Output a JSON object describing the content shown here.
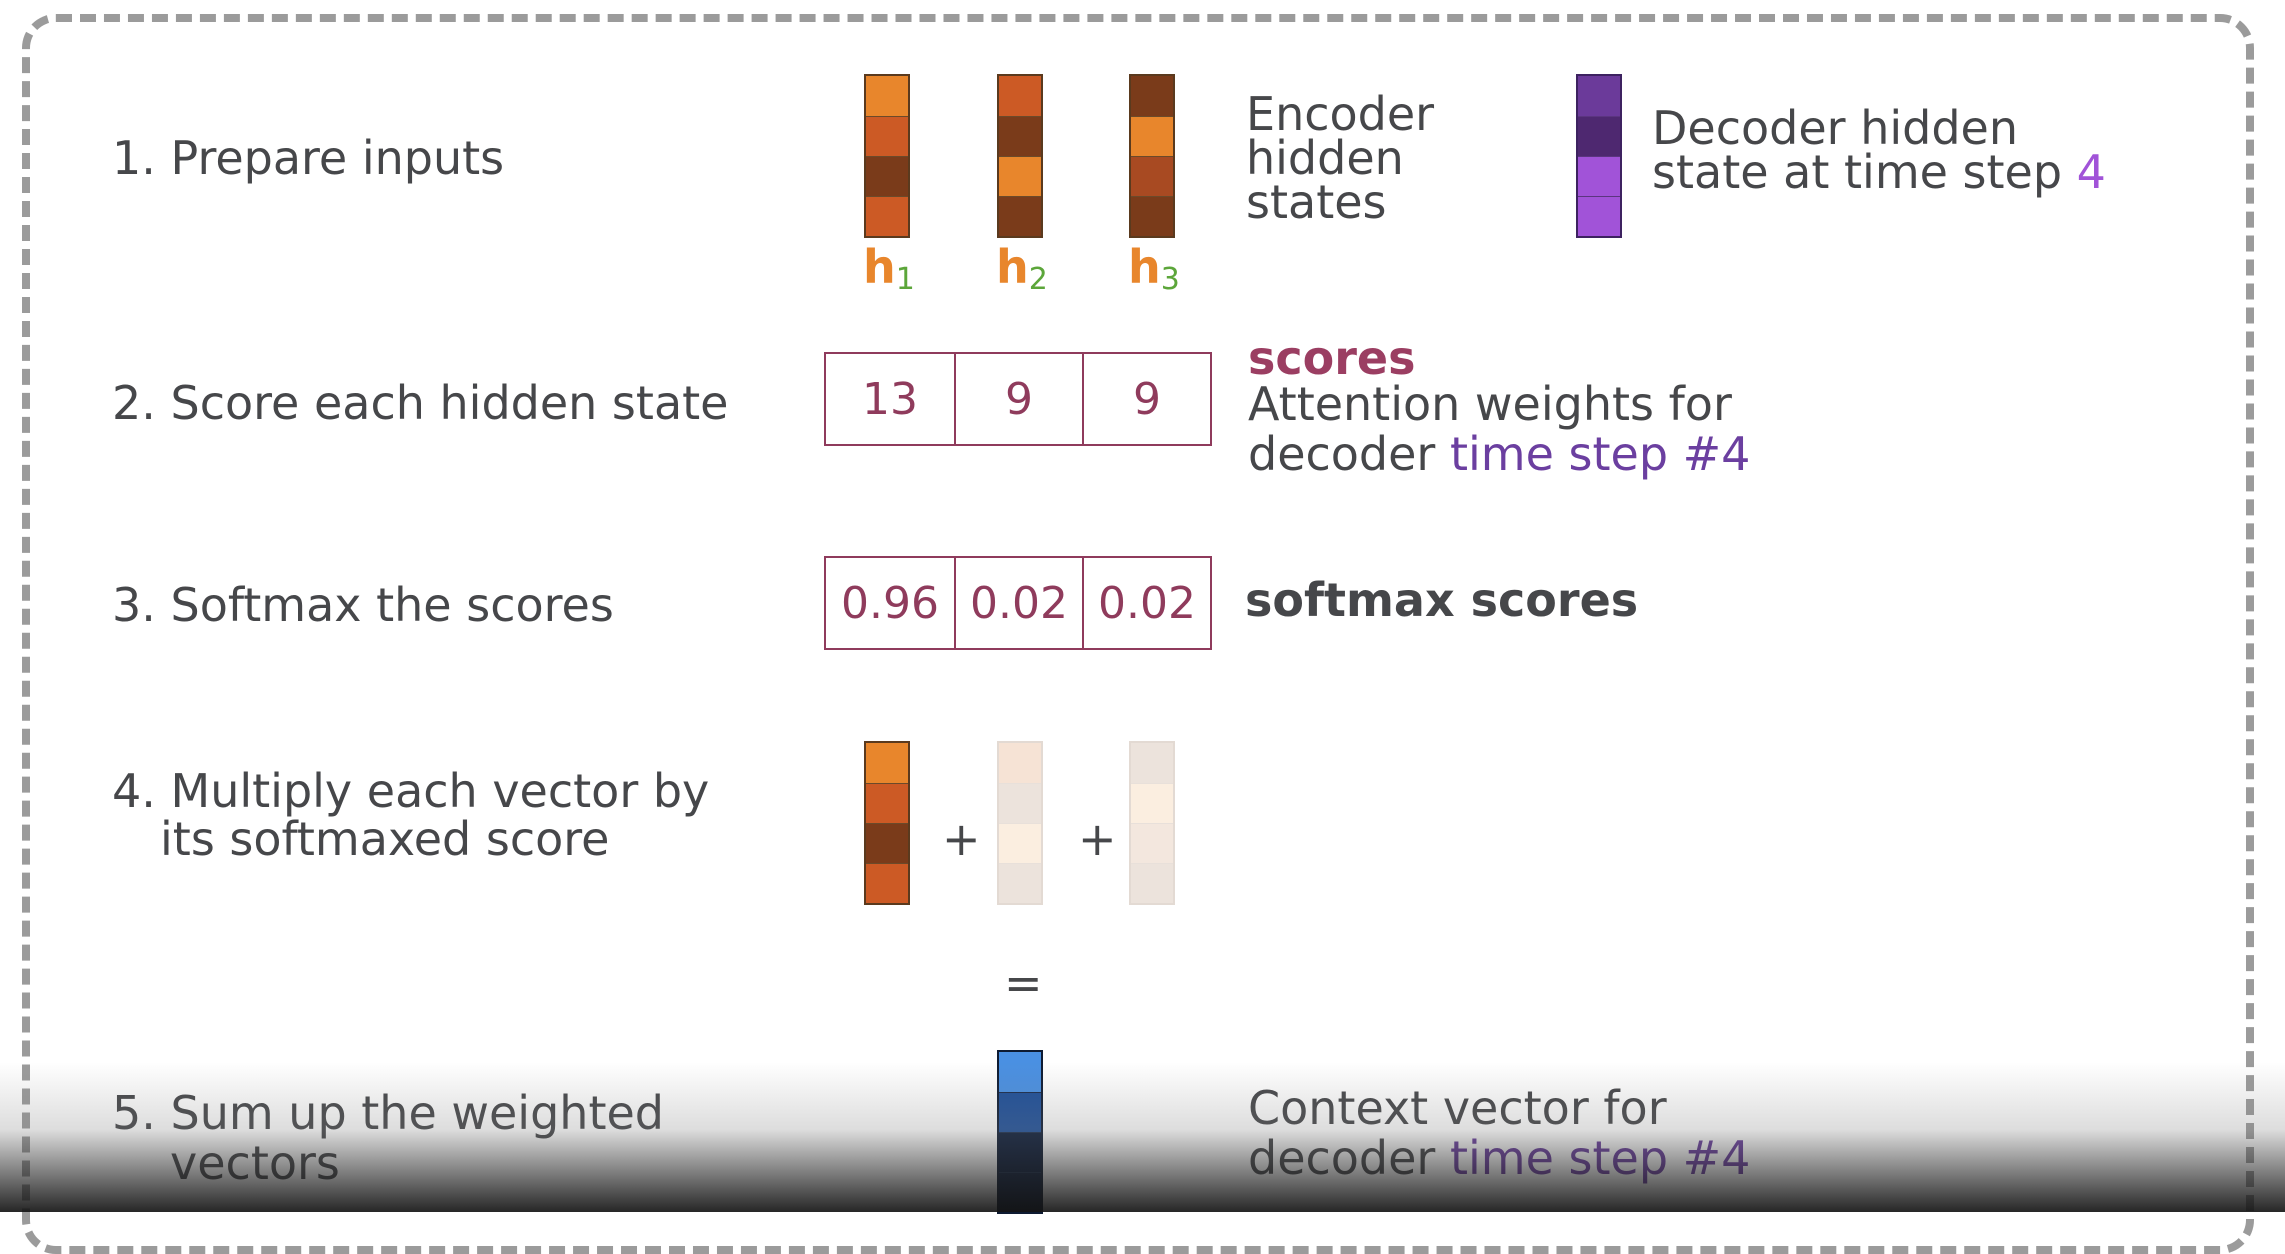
{
  "steps": {
    "s1": "1.  Prepare inputs",
    "s2": "2.  Score each hidden state",
    "s3": "3.  Softmax the scores",
    "s4_line1": "4. Multiply each vector by",
    "s4_line2": "its softmaxed score",
    "s5_line1": "5. Sum up the weighted",
    "s5_line2": "vectors"
  },
  "encoder": {
    "label_line1": "Encoder",
    "label_line2": "hidden",
    "label_line3": "states",
    "labels": [
      "h",
      "h",
      "h"
    ],
    "subscripts": [
      "1",
      "2",
      "3"
    ],
    "vectors": [
      [
        "#e8862c",
        "#cc5a25",
        "#7a3b1a",
        "#cc5a25"
      ],
      [
        "#cc5a25",
        "#7a3b1a",
        "#e8862c",
        "#7a3b1a"
      ],
      [
        "#7a3b1a",
        "#e8862c",
        "#a84a22",
        "#7a3b1a"
      ]
    ]
  },
  "decoder": {
    "label_line1": "Decoder hidden",
    "label_line2": "state at time step ",
    "step_number": "4",
    "vector": [
      "#6b3a9a",
      "#4e2870",
      "#a153d8",
      "#a153d8"
    ]
  },
  "scores": {
    "title": "scores",
    "desc_line1": "Attention weights for",
    "desc_line2": "decoder ",
    "desc_highlight": "time step #4",
    "values": [
      "13",
      "9",
      "9"
    ]
  },
  "softmax": {
    "label": "softmax scores",
    "values": [
      "0.96",
      "0.02",
      "0.02"
    ]
  },
  "weighted": {
    "vectors": [
      [
        "#e8862c",
        "#cc5a25",
        "#7a3b1a",
        "#cc5a25"
      ],
      [
        "#f6e3d5",
        "#ece3dc",
        "#fbeee0",
        "#ece3dc"
      ],
      [
        "#ece3dc",
        "#fbeee0",
        "#f3e7de",
        "#ece3dc"
      ]
    ],
    "plus": "+",
    "equals": "="
  },
  "context": {
    "desc_line1": "Context vector for",
    "desc_line2": "decoder ",
    "desc_highlight": "time step #4",
    "vector": [
      "#4a90e2",
      "#1e4f99",
      "#0a1a38",
      "#0a1a38"
    ]
  }
}
